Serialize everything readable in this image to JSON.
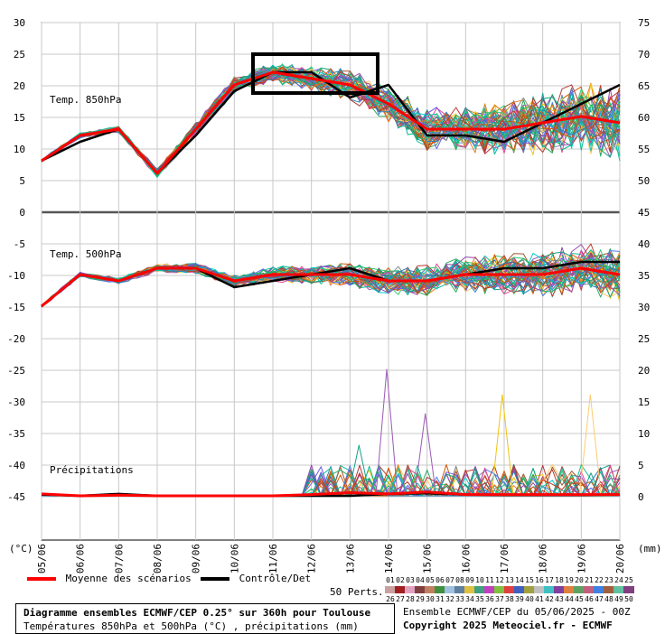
{
  "chart_data": {
    "type": "line",
    "title": "Diagramme ensembles ECMWF/CEP 0.25° sur 360h pour Toulouse",
    "subtitle": "Températures 850hPa et 500hPa (°C) , précipitations (mm)",
    "x_categories": [
      "05/06",
      "06/06",
      "07/06",
      "08/06",
      "09/06",
      "10/06",
      "11/06",
      "12/06",
      "13/06",
      "14/06",
      "15/06",
      "16/06",
      "17/06",
      "18/06",
      "19/06",
      "20/06"
    ],
    "left_axis_unit": "(°C)",
    "right_axis_unit": "(mm)",
    "left_ticks": [
      "30",
      "25",
      "20",
      "15",
      "10",
      "5",
      "0",
      "-5",
      "-10",
      "-15",
      "-20",
      "-25",
      "-30",
      "-35",
      "-40",
      "-45"
    ],
    "right_ticks": [
      "75",
      "70",
      "65",
      "60",
      "55",
      "50",
      "45",
      "40",
      "35",
      "30",
      "25",
      "20",
      "15",
      "10",
      "5",
      "0"
    ],
    "panels": [
      {
        "name": "Temp. 850hPa",
        "mean": [
          8,
          12,
          13,
          6,
          13,
          20,
          22,
          21,
          20,
          17,
          13,
          13,
          13,
          14,
          15,
          14
        ],
        "control": [
          8,
          11,
          13,
          6,
          12,
          19,
          22,
          22,
          18,
          20,
          12,
          12,
          11,
          14,
          17,
          20
        ]
      },
      {
        "name": "Temp. 500hPa",
        "mean": [
          -15,
          -10,
          -11,
          -9,
          -9,
          -11,
          -10,
          -10,
          -10,
          -11,
          -11,
          -10,
          -10,
          -10,
          -9,
          -10
        ],
        "control": [
          -15,
          -10,
          -11,
          -9,
          -9,
          -12,
          -11,
          -10,
          -9,
          -11,
          -11,
          -10,
          -9,
          -9,
          -8,
          -8
        ]
      },
      {
        "name": "Précipitations",
        "mean": [
          0.3,
          0,
          0.1,
          0,
          0,
          0,
          0,
          0.2,
          0.5,
          0.3,
          0.6,
          0.2,
          0.2,
          0.2,
          0.2,
          0.2
        ],
        "control": [
          0.2,
          0,
          0.3,
          0,
          0,
          0,
          0,
          0,
          0,
          0.3,
          0.4,
          0.2,
          0.1,
          0.1,
          0.1,
          0.2
        ],
        "peaks": [
          {
            "x": "14/06",
            "value": 20
          },
          {
            "x": "13/06",
            "value": 8
          },
          {
            "x": "17/06",
            "value": 16
          },
          {
            "x": "19/06",
            "value": 16
          },
          {
            "x": "15/06",
            "value": 13
          }
        ]
      }
    ],
    "legend": {
      "mean": "Moyenne des scénarios",
      "control": "Contrôle/Det",
      "members_label": "50 Perts.",
      "members_top": [
        "01",
        "02",
        "03",
        "04",
        "05",
        "06",
        "07",
        "08",
        "09",
        "10",
        "11",
        "12",
        "13",
        "14",
        "15",
        "16",
        "17",
        "18",
        "19",
        "20",
        "21",
        "22",
        "23",
        "24",
        "25"
      ],
      "members_bottom": [
        "26",
        "27",
        "28",
        "29",
        "30",
        "31",
        "32",
        "33",
        "34",
        "35",
        "36",
        "37",
        "38",
        "39",
        "40",
        "41",
        "42",
        "43",
        "44",
        "45",
        "46",
        "47",
        "48",
        "49",
        "50"
      ]
    },
    "colors": {
      "mean": "#ff0000",
      "control": "#000000"
    },
    "grid": true
  },
  "footer": {
    "run": "Ensemble ECMWF/CEP du 05/06/2025 - 00Z",
    "copyright": "Copyright 2025 Meteociel.fr - ECMWF"
  }
}
